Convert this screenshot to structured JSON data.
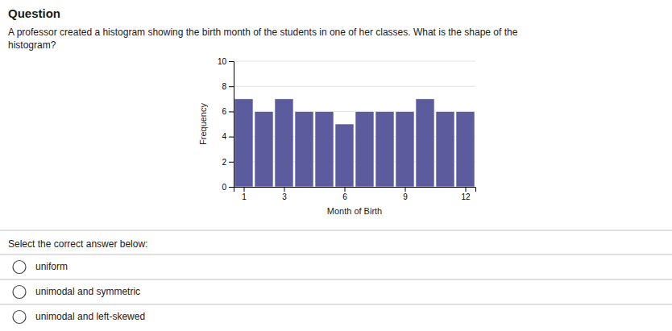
{
  "chart_data": {
    "type": "bar",
    "annotations": [
      "Question",
      "A professor created a histogram showing the birth month of the students in one of her classes. What is the shape of the",
      "histogram?",
      "Select the correct answer below:",
      "uniform",
      "unimodal and symmetric",
      "unimodal and left-skewed"
    ],
    "x": [
      1,
      2,
      3,
      4,
      5,
      6,
      7,
      8,
      9,
      10,
      11,
      12
    ],
    "values": [
      7,
      6,
      7,
      6,
      6,
      5,
      6,
      6,
      6,
      7,
      6,
      6
    ],
    "color": "#5b5b9e",
    "xlabel": "Month of Birth",
    "ylabel": "Frequency",
    "xlim": [
      0.5,
      12.5
    ],
    "ylim": [
      0,
      10
    ],
    "xticks": [
      1,
      3,
      6,
      9,
      12
    ],
    "yticks": [
      0,
      2,
      4,
      6,
      8,
      10
    ],
    "grid": true
  }
}
